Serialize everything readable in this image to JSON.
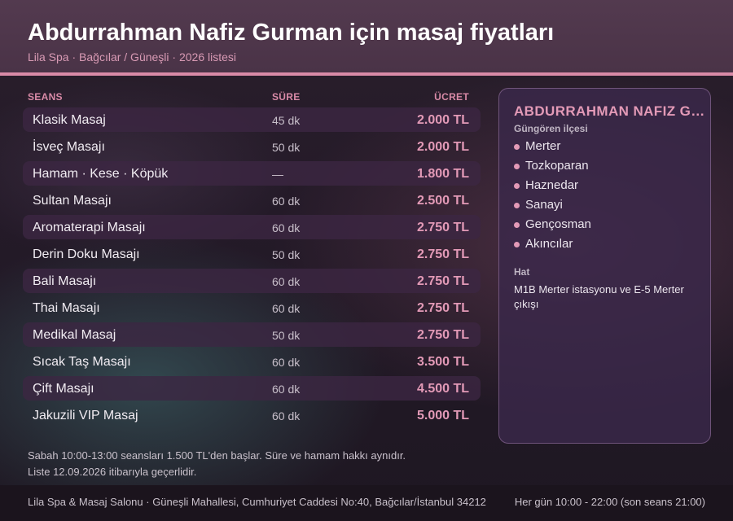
{
  "header": {
    "title": "Abdurrahman Nafiz Gurman için masaj fiyatları",
    "subtitle": "Lila Spa · Bağcılar / Güneşli · 2026 listesi"
  },
  "table": {
    "columns": {
      "session": "SEANS",
      "duration": "SÜRE",
      "price": "ÜCRET"
    },
    "rows": [
      {
        "name": "Klasik Masaj",
        "duration": "45 dk",
        "price": "2.000 TL"
      },
      {
        "name": "İsveç Masajı",
        "duration": "50 dk",
        "price": "2.000 TL"
      },
      {
        "name": "Hamam · Kese · Köpük",
        "duration": "—",
        "price": "1.800 TL"
      },
      {
        "name": "Sultan Masajı",
        "duration": "60 dk",
        "price": "2.500 TL"
      },
      {
        "name": "Aromaterapi Masajı",
        "duration": "60 dk",
        "price": "2.750 TL"
      },
      {
        "name": "Derin Doku Masajı",
        "duration": "50 dk",
        "price": "2.750 TL"
      },
      {
        "name": "Bali Masajı",
        "duration": "60 dk",
        "price": "2.750 TL"
      },
      {
        "name": "Thai Masajı",
        "duration": "60 dk",
        "price": "2.750 TL"
      },
      {
        "name": "Medikal Masaj",
        "duration": "50 dk",
        "price": "2.750 TL"
      },
      {
        "name": "Sıcak Taş Masajı",
        "duration": "60 dk",
        "price": "3.500 TL"
      },
      {
        "name": "Çift Masajı",
        "duration": "60 dk",
        "price": "4.500 TL"
      },
      {
        "name": "Jakuzili VIP Masaj",
        "duration": "60 dk",
        "price": "5.000 TL"
      }
    ]
  },
  "notes": {
    "line1": "Sabah 10:00-13:00 seansları 1.500 TL'den başlar. Süre ve hamam hakkı aynıdır.",
    "line2": "Liste 12.09.2026 itibarıyla geçerlidir."
  },
  "panel": {
    "title": "ABDURRAHMAN NAFIZ GURMAN",
    "district_label": "Güngören ilçesi",
    "neighborhoods": [
      "Merter",
      "Tozkoparan",
      "Haznedar",
      "Sanayi",
      "Gençosman",
      "Akıncılar"
    ],
    "transit_label": "Hat",
    "transit_text": "M1B Merter istasyonu ve E-5 Merter çıkışı"
  },
  "footer": {
    "address": "Lila Spa & Masaj Salonu · Güneşli Mahallesi, Cumhuriyet Caddesi No:40, Bağcılar/İstanbul 34212",
    "hours": "Her gün 10:00 - 22:00 (son seans 21:00)"
  },
  "colors": {
    "accent": "#d98aa7",
    "price": "#e39ab7",
    "header_bg": "#4a3347"
  }
}
